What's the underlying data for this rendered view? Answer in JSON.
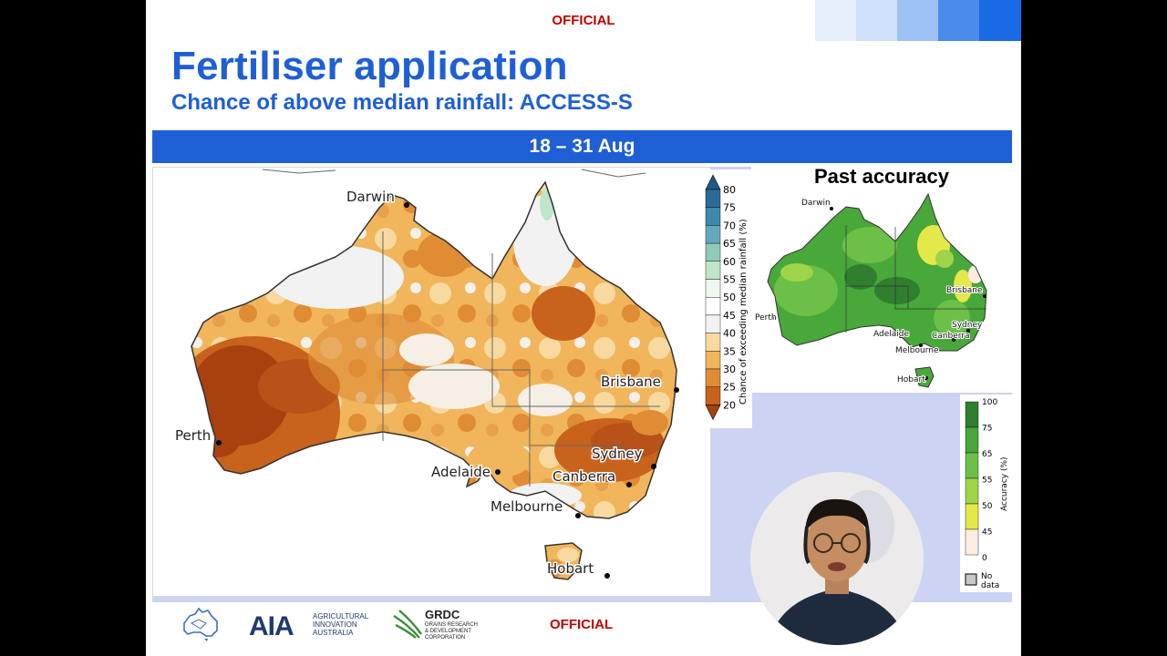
{
  "classification": {
    "top": "OFFICIAL",
    "bottom": "OFFICIAL"
  },
  "header": {
    "title": "Fertiliser application",
    "subtitle": "Chance of above median rainfall: ACCESS-S"
  },
  "period": "18 – 31 Aug",
  "main_map": {
    "cities": [
      "Darwin",
      "Perth",
      "Adelaide",
      "Melbourne",
      "Brisbane",
      "Sydney",
      "Canberra",
      "Hobart"
    ],
    "colorbar_label": "Chance of exceeding median rainfall (%)",
    "colorbar_ticks": [
      "80",
      "75",
      "70",
      "65",
      "60",
      "55",
      "50",
      "45",
      "40",
      "35",
      "30",
      "25",
      "20"
    ],
    "colorbar_colors": [
      "#2a6c96",
      "#3f88ae",
      "#64a8c0",
      "#8fcbb7",
      "#bfe6c9",
      "#eef8ef",
      "#ffffff",
      "#f2f2f2",
      "#f8d9a0",
      "#f1b55c",
      "#e08c34",
      "#c8621c",
      "#a8400f"
    ]
  },
  "accuracy_map": {
    "title": "Past accuracy",
    "cities": [
      "Darwin",
      "Perth",
      "Adelaide",
      "Melbourne",
      "Brisbane",
      "Sydney",
      "Canberra",
      "Hobart"
    ],
    "legend_label": "Accuracy (%)",
    "legend_ticks": [
      "100",
      "75",
      "65",
      "55",
      "50",
      "45",
      "0"
    ],
    "legend_colors": [
      "#2f7f2f",
      "#49a83a",
      "#6cc048",
      "#9fd449",
      "#e4e84a",
      "#fbeee0",
      "#ffffff"
    ],
    "no_data_label_line1": "No",
    "no_data_label_line2": "data",
    "no_data_color": "#c8c8c8"
  },
  "logos": {
    "aia_line1": "AGRICULTURAL",
    "aia_line2": "INNOVATION",
    "aia_line3": "AUSTRALIA",
    "aia_mark": "AIA",
    "grdc_mark": "GRDC",
    "grdc_line1": "GRAINS RESEARCH",
    "grdc_line2": "& DEVELOPMENT",
    "grdc_line3": "CORPORATION",
    "bom_icon": "australia-outline-icon"
  },
  "colors": {
    "brand_blue": "#1f5fd6",
    "official_red": "#c00000",
    "panel_lavender": "#cdd3f3",
    "strip": [
      "#e6effc",
      "#cfe0fa",
      "#9cc1f3",
      "#4a8cec",
      "#1a6ae6"
    ]
  }
}
